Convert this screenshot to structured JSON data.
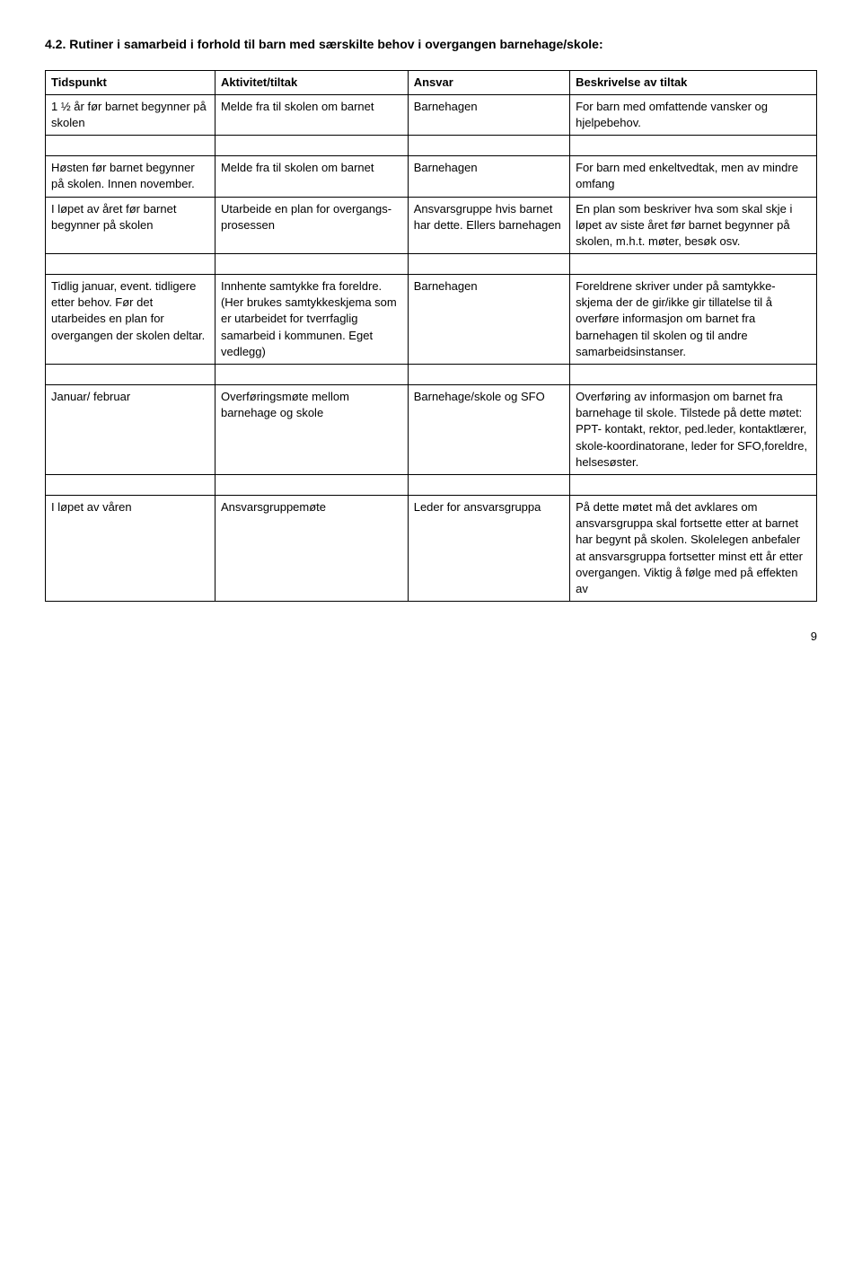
{
  "heading": "4.2. Rutiner i samarbeid i forhold til barn med særskilte behov i overgangen barnehage/skole:",
  "headers": {
    "c1": "Tidspunkt",
    "c2": "Aktivitet/tiltak",
    "c3": "Ansvar",
    "c4": "Beskrivelse av tiltak"
  },
  "rows": [
    {
      "c1": "1 ½ år før barnet begynner på skolen",
      "c2": "Melde fra til skolen om barnet",
      "c3": "Barnehagen",
      "c4": "For barn med omfattende vansker og hjelpebehov."
    },
    {
      "c1": "Høsten før barnet begynner på skolen. Innen november.",
      "c2": "Melde fra til skolen om barnet",
      "c3": "Barnehagen",
      "c4": "For barn med enkeltvedtak, men av mindre omfang"
    },
    {
      "c1": "I løpet av året før barnet begynner på skolen",
      "c2": "Utarbeide en plan for overgangs-prosessen",
      "c3": "Ansvarsgruppe hvis barnet har dette. Ellers barnehagen",
      "c4": "En plan som beskriver hva som skal skje i løpet av siste året før barnet begynner på skolen, m.h.t. møter, besøk osv."
    },
    {
      "c1": "Tidlig januar, event. tidligere etter behov. Før det utarbeides en plan for overgangen der skolen deltar.",
      "c2": "Innhente samtykke fra foreldre. (Her brukes samtykkeskjema som er utarbeidet for tverrfaglig samarbeid i kommunen. Eget vedlegg)",
      "c3": "Barnehagen",
      "c4": "Foreldrene skriver under på samtykke-skjema der de gir/ikke gir tillatelse til å overføre informasjon om barnet fra barnehagen til skolen og til andre samarbeidsinstanser."
    },
    {
      "c1": "Januar/ februar",
      "c2": "Overføringsmøte mellom barnehage og skole",
      "c3": "Barnehage/skole og SFO",
      "c4": "Overføring av informasjon om barnet fra barnehage til skole. Tilstede på dette møtet: PPT- kontakt, rektor, ped.leder, kontaktlærer, skole-koordinatorane, leder for SFO,foreldre, helsesøster."
    },
    {
      "c1": "I løpet av våren",
      "c2": "Ansvarsgruppemøte",
      "c3": "Leder for ansvarsgruppa",
      "c4": "På dette møtet må det avklares om ansvarsgruppa skal fortsette etter at barnet har begynt på skolen. Skolelegen anbefaler at ansvarsgruppa fortsetter minst ett år etter overgangen. Viktig å følge med på effekten av"
    }
  ],
  "pageNumber": "9"
}
